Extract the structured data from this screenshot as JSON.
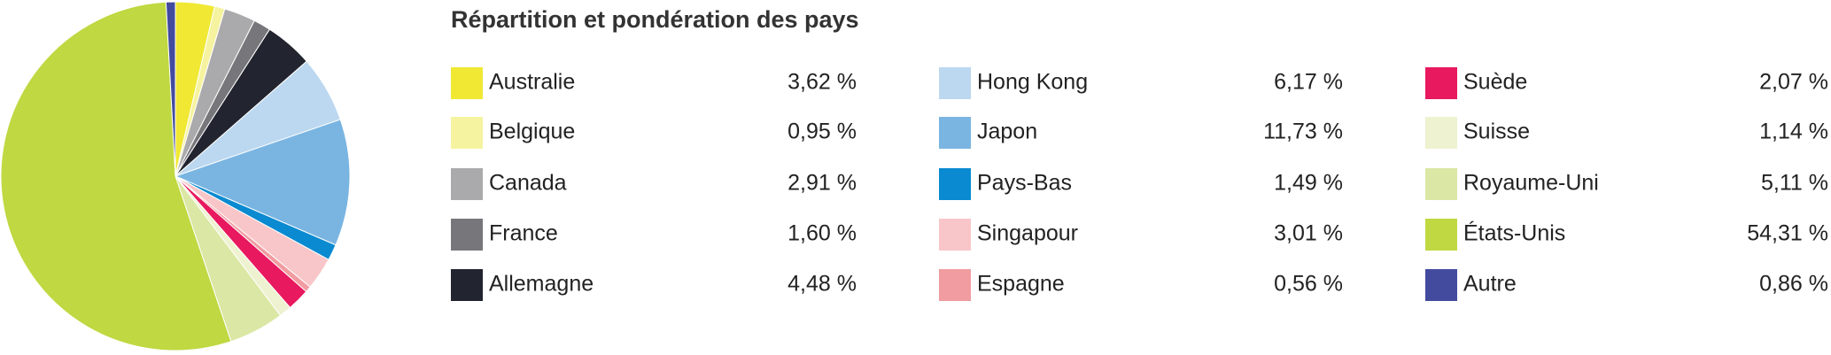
{
  "chart_data": {
    "type": "pie",
    "title": "Répartition et pondération des pays",
    "categories": [
      "Australie",
      "Belgique",
      "Canada",
      "France",
      "Allemagne",
      "Hong Kong",
      "Japon",
      "Pays-Bas",
      "Singapour",
      "Espagne",
      "Suède",
      "Suisse",
      "Royaume-Uni",
      "États-Unis",
      "Autre"
    ],
    "values": [
      3.62,
      0.95,
      2.91,
      1.6,
      4.48,
      6.17,
      11.73,
      1.49,
      3.01,
      0.56,
      2.07,
      1.14,
      5.11,
      54.31,
      0.86
    ],
    "value_labels": [
      "3,62 %",
      "0,95 %",
      "2,91 %",
      "1,60 %",
      "4,48 %",
      "6,17 %",
      "11,73 %",
      "1,49 %",
      "3,01 %",
      "0,56 %",
      "2,07 %",
      "1,14 %",
      "5,11 %",
      "54,31 %",
      "0,86 %"
    ],
    "colors": [
      "#f0e833",
      "#f6f3a0",
      "#aaaaac",
      "#77767b",
      "#22252f",
      "#bcd8f0",
      "#7ab5e2",
      "#0a8ad0",
      "#f8c6c8",
      "#f19ca1",
      "#e8195e",
      "#eef2d0",
      "#dbe7a4",
      "#c0d841",
      "#434b9e"
    ]
  }
}
